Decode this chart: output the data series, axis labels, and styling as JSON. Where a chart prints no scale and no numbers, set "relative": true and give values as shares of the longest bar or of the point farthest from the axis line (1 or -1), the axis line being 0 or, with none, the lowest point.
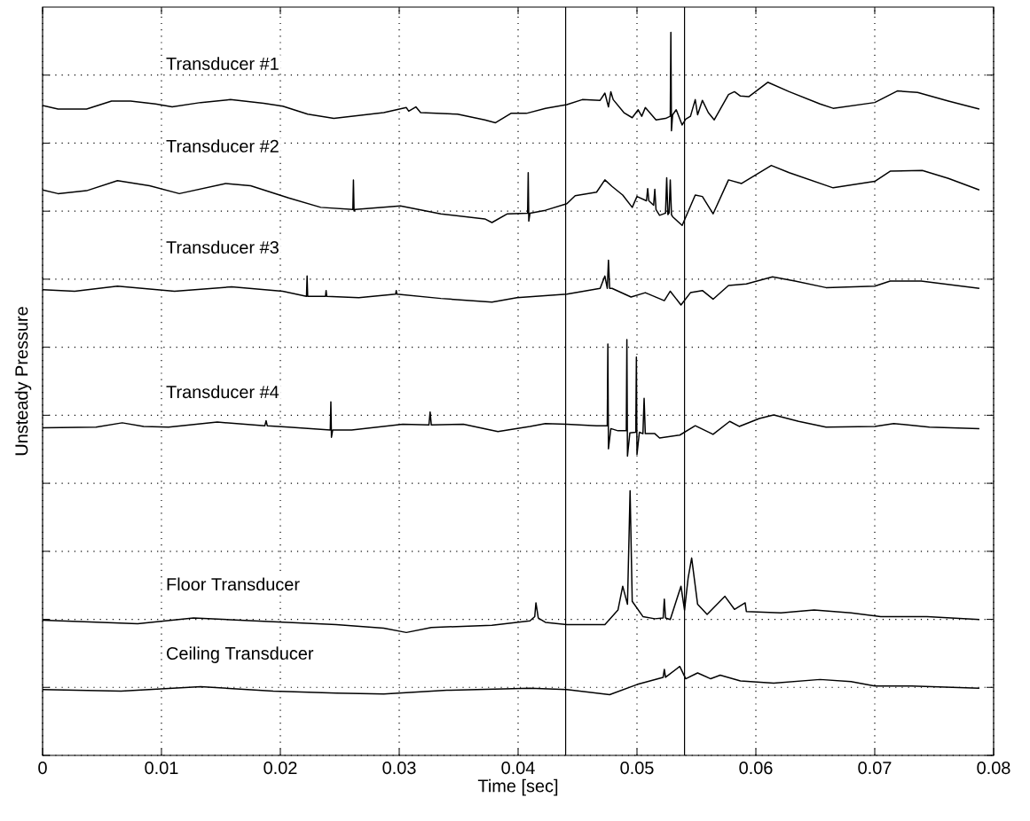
{
  "chart_data": {
    "type": "line",
    "xlabel": "Time [sec]",
    "ylabel": "Unsteady Pressure",
    "relative": true,
    "grid": true,
    "xlim": [
      0,
      0.08
    ],
    "xticks": [
      0,
      0.01,
      0.02,
      0.03,
      0.04,
      0.05,
      0.06,
      0.07,
      0.08
    ],
    "ref_lines": [
      {
        "axis": "x",
        "value": 0.044,
        "color": "#000000"
      },
      {
        "axis": "x",
        "value": 0.054,
        "color": "#000000"
      }
    ],
    "series": [
      {
        "name": "Transducer #1",
        "color": "#000000",
        "x": [
          0,
          0.0013,
          0.0037,
          0.0058,
          0.0074,
          0.0095,
          0.0109,
          0.0133,
          0.0158,
          0.0186,
          0.0202,
          0.0223,
          0.0245,
          0.0287,
          0.0306,
          0.0308,
          0.0314,
          0.0318,
          0.0349,
          0.0372,
          0.0381,
          0.0394,
          0.0407,
          0.0423,
          0.0441,
          0.0454,
          0.0469,
          0.0473,
          0.0476,
          0.0478,
          0.048,
          0.0489,
          0.0496,
          0.0501,
          0.0504,
          0.0507,
          0.0516,
          0.0524,
          0.0528,
          0.05285,
          0.0529,
          0.053,
          0.0533,
          0.0538,
          0.0541,
          0.0545,
          0.0549,
          0.0551,
          0.0555,
          0.056,
          0.0565,
          0.0577,
          0.0582,
          0.0587,
          0.0594,
          0.061,
          0.0628,
          0.0654,
          0.0665,
          0.07,
          0.0719,
          0.0736,
          0.0762,
          0.0788
        ],
        "values": [
          0.899,
          0.894,
          0.894,
          0.905,
          0.905,
          0.901,
          0.897,
          0.903,
          0.907,
          0.902,
          0.898,
          0.887,
          0.881,
          0.889,
          0.896,
          0.891,
          0.897,
          0.889,
          0.887,
          0.879,
          0.875,
          0.888,
          0.888,
          0.895,
          0.9,
          0.907,
          0.906,
          0.916,
          0.897,
          0.918,
          0.907,
          0.889,
          0.882,
          0.893,
          0.884,
          0.896,
          0.879,
          0.881,
          0.884,
          1,
          0.864,
          0.886,
          0.893,
          0.872,
          0.88,
          0.884,
          0.907,
          0.886,
          0.906,
          0.889,
          0.879,
          0.914,
          0.918,
          0.912,
          0.911,
          0.931,
          0.918,
          0.901,
          0.895,
          0.903,
          0.919,
          0.917,
          0.905,
          0.894
        ]
      },
      {
        "name": "Transducer #2",
        "color": "#000000",
        "x": [
          0,
          0.0013,
          0.0037,
          0.0063,
          0.009,
          0.0115,
          0.0154,
          0.0175,
          0.0207,
          0.0234,
          0.0261,
          0.02615,
          0.0262,
          0.0263,
          0.0301,
          0.0335,
          0.0372,
          0.0378,
          0.0391,
          0.0408,
          0.04085,
          0.0409,
          0.041,
          0.0423,
          0.0441,
          0.0448,
          0.0466,
          0.0473,
          0.0479,
          0.0488,
          0.0496,
          0.05,
          0.0508,
          0.0509,
          0.051,
          0.0514,
          0.0515,
          0.0516,
          0.0519,
          0.0524,
          0.0525,
          0.0526,
          0.0527,
          0.0528,
          0.0529,
          0.053,
          0.0538,
          0.0543,
          0.0549,
          0.0555,
          0.0564,
          0.0577,
          0.0588,
          0.0613,
          0.0628,
          0.0665,
          0.07,
          0.0713,
          0.074,
          0.0762,
          0.0788
        ],
        "values": [
          0.782,
          0.777,
          0.781,
          0.795,
          0.788,
          0.777,
          0.791,
          0.788,
          0.771,
          0.758,
          0.755,
          0.796,
          0.753,
          0.755,
          0.76,
          0.749,
          0.742,
          0.737,
          0.749,
          0.75,
          0.806,
          0.739,
          0.75,
          0.754,
          0.763,
          0.774,
          0.779,
          0.796,
          0.787,
          0.775,
          0.758,
          0.773,
          0.767,
          0.784,
          0.767,
          0.761,
          0.783,
          0.755,
          0.747,
          0.75,
          0.799,
          0.748,
          0.75,
          0.796,
          0.748,
          0.745,
          0.733,
          0.752,
          0.775,
          0.773,
          0.749,
          0.796,
          0.791,
          0.816,
          0.806,
          0.785,
          0.794,
          0.808,
          0.809,
          0.798,
          0.782
        ]
      },
      {
        "name": "Transducer #3",
        "color": "#000000",
        "x": [
          0,
          0.0027,
          0.0063,
          0.0111,
          0.0159,
          0.0202,
          0.0222,
          0.02225,
          0.0223,
          0.0238,
          0.02385,
          0.0239,
          0.0266,
          0.0297,
          0.02975,
          0.0298,
          0.0335,
          0.0378,
          0.0399,
          0.0441,
          0.0469,
          0.0473,
          0.0475,
          0.0476,
          0.0477,
          0.0479,
          0.0495,
          0.0507,
          0.0523,
          0.0528,
          0.0537,
          0.0545,
          0.0555,
          0.0564,
          0.0577,
          0.0592,
          0.0614,
          0.0633,
          0.0659,
          0.07,
          0.0713,
          0.0739,
          0.0788
        ],
        "values": [
          0.644,
          0.642,
          0.649,
          0.642,
          0.648,
          0.642,
          0.635,
          0.663,
          0.635,
          0.635,
          0.643,
          0.635,
          0.633,
          0.638,
          0.643,
          0.638,
          0.632,
          0.627,
          0.633,
          0.638,
          0.646,
          0.663,
          0.646,
          0.685,
          0.646,
          0.646,
          0.634,
          0.64,
          0.629,
          0.642,
          0.623,
          0.64,
          0.643,
          0.631,
          0.65,
          0.652,
          0.662,
          0.656,
          0.647,
          0.649,
          0.656,
          0.656,
          0.646
        ]
      },
      {
        "name": "Transducer #4",
        "color": "#000000",
        "x": [
          0,
          0.0045,
          0.0067,
          0.0085,
          0.0106,
          0.0147,
          0.0187,
          0.0188,
          0.0189,
          0.0207,
          0.0242,
          0.02425,
          0.0243,
          0.0244,
          0.026,
          0.0303,
          0.0325,
          0.0326,
          0.0327,
          0.0354,
          0.0383,
          0.041,
          0.0423,
          0.0441,
          0.0466,
          0.0475,
          0.04755,
          0.0476,
          0.0478,
          0.0484,
          0.0491,
          0.04915,
          0.0492,
          0.0494,
          0.0499,
          0.04995,
          0.05,
          0.0502,
          0.0505,
          0.0506,
          0.0507,
          0.0515,
          0.0519,
          0.0536,
          0.0549,
          0.0564,
          0.0578,
          0.0586,
          0.0603,
          0.0615,
          0.0636,
          0.0659,
          0.07,
          0.0716,
          0.0746,
          0.0788
        ],
        "values": [
          0.453,
          0.454,
          0.46,
          0.455,
          0.454,
          0.461,
          0.456,
          0.463,
          0.456,
          0.454,
          0.45,
          0.489,
          0.44,
          0.45,
          0.45,
          0.458,
          0.457,
          0.475,
          0.457,
          0.458,
          0.448,
          0.455,
          0.459,
          0.458,
          0.456,
          0.456,
          0.569,
          0.424,
          0.452,
          0.449,
          0.449,
          0.575,
          0.414,
          0.446,
          0.447,
          0.551,
          0.416,
          0.447,
          0.445,
          0.494,
          0.445,
          0.445,
          0.439,
          0.443,
          0.456,
          0.444,
          0.462,
          0.455,
          0.466,
          0.471,
          0.462,
          0.454,
          0.455,
          0.459,
          0.454,
          0.452
        ]
      },
      {
        "name": "Floor Transducer",
        "color": "#000000",
        "x": [
          0,
          0.008,
          0.0127,
          0.0194,
          0.0247,
          0.0287,
          0.0306,
          0.0327,
          0.0378,
          0.041,
          0.0414,
          0.0415,
          0.0417,
          0.0423,
          0.0441,
          0.0473,
          0.0484,
          0.0488,
          0.0492,
          0.04942,
          0.0496,
          0.0505,
          0.0515,
          0.0522,
          0.0523,
          0.0524,
          0.0528,
          0.0537,
          0.054,
          0.0543,
          0.0546,
          0.0551,
          0.0559,
          0.0574,
          0.0582,
          0.0591,
          0.0592,
          0.0621,
          0.0649,
          0.068,
          0.0705,
          0.0744,
          0.0788
        ],
        "values": [
          0.187,
          0.182,
          0.19,
          0.185,
          0.181,
          0.176,
          0.17,
          0.177,
          0.18,
          0.186,
          0.192,
          0.211,
          0.19,
          0.184,
          0.181,
          0.181,
          0.201,
          0.234,
          0.209,
          0.366,
          0.213,
          0.192,
          0.189,
          0.19,
          0.216,
          0.19,
          0.188,
          0.234,
          0.201,
          0.245,
          0.273,
          0.209,
          0.195,
          0.22,
          0.202,
          0.211,
          0.199,
          0.197,
          0.201,
          0.197,
          0.192,
          0.192,
          0.188
        ]
      },
      {
        "name": "Ceiling Transducer",
        "color": "#000000",
        "x": [
          0,
          0.0066,
          0.0133,
          0.0194,
          0.0247,
          0.0287,
          0.034,
          0.041,
          0.0441,
          0.0477,
          0.05,
          0.0522,
          0.0523,
          0.0524,
          0.0536,
          0.0541,
          0.0551,
          0.0562,
          0.057,
          0.0587,
          0.0615,
          0.0654,
          0.068,
          0.07,
          0.0731,
          0.0788
        ],
        "values": [
          0.091,
          0.089,
          0.095,
          0.089,
          0.086,
          0.085,
          0.09,
          0.093,
          0.091,
          0.084,
          0.098,
          0.108,
          0.119,
          0.108,
          0.123,
          0.106,
          0.114,
          0.106,
          0.111,
          0.103,
          0.1,
          0.105,
          0.102,
          0.096,
          0.096,
          0.093
        ]
      }
    ]
  }
}
